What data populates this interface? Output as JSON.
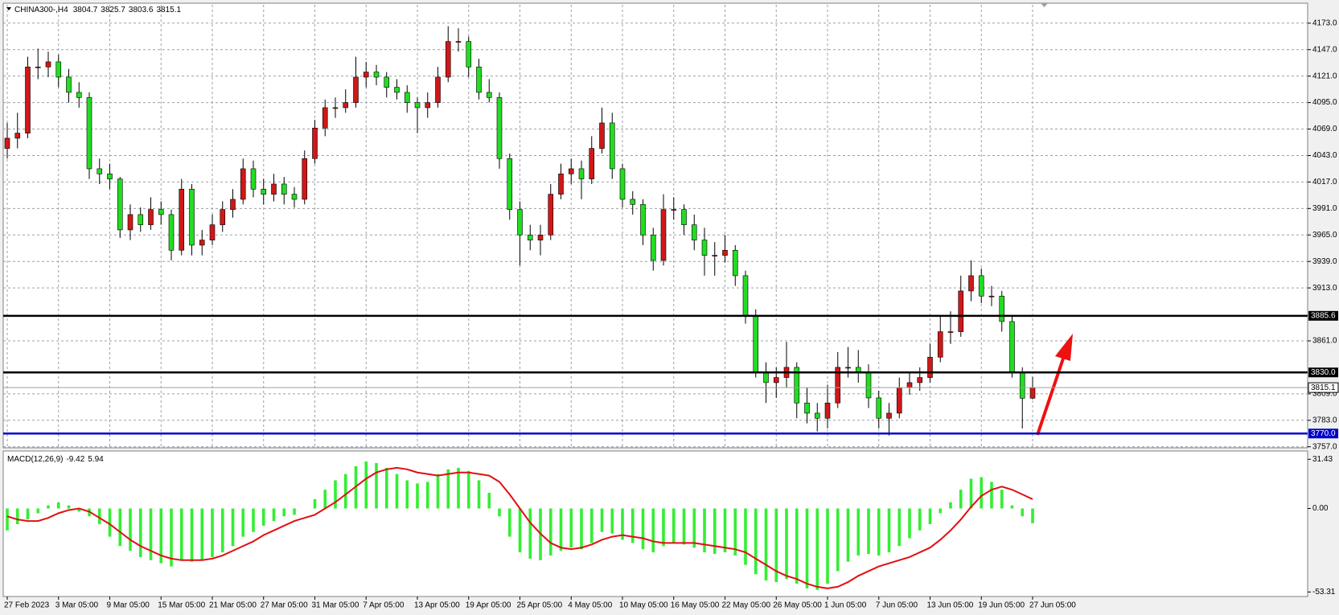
{
  "chart_data": [
    {
      "type": "candlestick",
      "title": "CHINA300-,H4",
      "up_color": "#d01818",
      "down_color": "#22dd22",
      "wick_color": "#000000",
      "grid": true,
      "ylim": [
        3756,
        4191
      ],
      "yticks": [
        {
          "value": 4173,
          "label": "4173.0"
        },
        {
          "value": 4147,
          "label": "4147.0"
        },
        {
          "value": 4121,
          "label": "4121.0"
        },
        {
          "value": 4095,
          "label": "4095.0"
        },
        {
          "value": 4069,
          "label": "4069.0"
        },
        {
          "value": 4043,
          "label": "4043.0"
        },
        {
          "value": 4017,
          "label": "4017.0"
        },
        {
          "value": 3991,
          "label": "3991.0"
        },
        {
          "value": 3965,
          "label": "3965.0"
        },
        {
          "value": 3939,
          "label": "3939.0"
        },
        {
          "value": 3913,
          "label": "3913.0"
        },
        {
          "value": 3861,
          "label": "3861.0"
        },
        {
          "value": 3809,
          "label": "3809.0"
        },
        {
          "value": 3783,
          "label": "3783.0"
        },
        {
          "value": 3757,
          "label": "3757.0"
        }
      ],
      "levels": [
        {
          "price": 3885.6,
          "color": "#000000"
        },
        {
          "price": {
            "value": 3830,
            "label": "3830.0"
          },
          "color": "#000000"
        },
        {
          "price": {
            "value": 3770,
            "label": "3770.0"
          },
          "color": "#0000cc"
        }
      ],
      "bid_line_color": "#a0a0a0",
      "categories": [
        "27 Feb 2023",
        null,
        null,
        null,
        null,
        "3 Mar 05:00",
        null,
        null,
        null,
        null,
        "9 Mar 05:00",
        null,
        null,
        null,
        null,
        "15 Mar 05:00",
        null,
        null,
        null,
        null,
        "21 Mar 05:00",
        null,
        null,
        null,
        null,
        "27 Mar 05:00",
        null,
        null,
        null,
        null,
        "31 Mar 05:00",
        null,
        null,
        null,
        null,
        "7 Apr 05:00",
        null,
        null,
        null,
        null,
        "13 Apr 05:00",
        null,
        null,
        null,
        null,
        "19 Apr 05:00",
        null,
        null,
        null,
        null,
        "25 Apr 05:00",
        null,
        null,
        null,
        null,
        "4 May 05:00",
        null,
        null,
        null,
        null,
        "10 May 05:00",
        null,
        null,
        null,
        null,
        "16 May 05:00",
        null,
        null,
        null,
        null,
        "22 May 05:00",
        null,
        null,
        null,
        null,
        "26 May 05:00",
        null,
        null,
        null,
        null,
        "1 Jun 05:00",
        null,
        null,
        null,
        null,
        "7 Jun 05:00",
        null,
        null,
        null,
        null,
        "13 Jun 05:00",
        null,
        null,
        null,
        null,
        "19 Jun 05:00",
        null,
        null,
        null,
        null,
        "27 Jun 05:00"
      ],
      "ohlc": [
        [
          4050,
          4075,
          4040,
          4060
        ],
        [
          4060,
          4085,
          4050,
          4065
        ],
        [
          4065,
          4140,
          4060,
          4130
        ],
        [
          4130,
          4148,
          4118,
          4130
        ],
        [
          4130,
          4145,
          4120,
          4135
        ],
        [
          4135,
          4142,
          4110,
          4120
        ],
        [
          4120,
          4128,
          4095,
          4105
        ],
        [
          4105,
          4115,
          4090,
          4100
        ],
        [
          4100,
          4105,
          4020,
          4030
        ],
        [
          4030,
          4040,
          4015,
          4025
        ],
        [
          4025,
          4035,
          4010,
          4020
        ],
        [
          4020,
          4022,
          3962,
          3970
        ],
        [
          3970,
          3995,
          3960,
          3985
        ],
        [
          3985,
          3992,
          3968,
          3975
        ],
        [
          3975,
          4002,
          3970,
          3990
        ],
        [
          3990,
          3998,
          3975,
          3985
        ],
        [
          3985,
          3990,
          3940,
          3950
        ],
        [
          3950,
          4020,
          3945,
          4010
        ],
        [
          4010,
          4015,
          3945,
          3955
        ],
        [
          3955,
          3970,
          3945,
          3960
        ],
        [
          3960,
          3985,
          3955,
          3975
        ],
        [
          3975,
          3998,
          3968,
          3990
        ],
        [
          3990,
          4010,
          3982,
          4000
        ],
        [
          4000,
          4040,
          3995,
          4030
        ],
        [
          4030,
          4038,
          4002,
          4010
        ],
        [
          4010,
          4020,
          3995,
          4005
        ],
        [
          4005,
          4025,
          3998,
          4015
        ],
        [
          4015,
          4022,
          3995,
          4005
        ],
        [
          4005,
          4012,
          3992,
          4000
        ],
        [
          4000,
          4048,
          3995,
          4040
        ],
        [
          4040,
          4078,
          4035,
          4070
        ],
        [
          4070,
          4098,
          4062,
          4090
        ],
        [
          4090,
          4100,
          4080,
          4090
        ],
        [
          4090,
          4108,
          4085,
          4095
        ],
        [
          4095,
          4140,
          4090,
          4120
        ],
        [
          4120,
          4135,
          4110,
          4125
        ],
        [
          4125,
          4132,
          4112,
          4120
        ],
        [
          4120,
          4125,
          4100,
          4110
        ],
        [
          4110,
          4118,
          4098,
          4105
        ],
        [
          4105,
          4112,
          4085,
          4095
        ],
        [
          4095,
          4100,
          4065,
          4090
        ],
        [
          4090,
          4105,
          4080,
          4095
        ],
        [
          4095,
          4130,
          4090,
          4120
        ],
        [
          4120,
          4170,
          4115,
          4155
        ],
        [
          4155,
          4168,
          4145,
          4155
        ],
        [
          4155,
          4160,
          4120,
          4130
        ],
        [
          4130,
          4138,
          4098,
          4105
        ],
        [
          4105,
          4118,
          4095,
          4100
        ],
        [
          4100,
          4105,
          4030,
          4040
        ],
        [
          4040,
          4045,
          3980,
          3990
        ],
        [
          3990,
          3998,
          3935,
          3965
        ],
        [
          3965,
          3975,
          3950,
          3960
        ],
        [
          3960,
          3975,
          3945,
          3965
        ],
        [
          3965,
          4015,
          3960,
          4005
        ],
        [
          4005,
          4035,
          4000,
          4025
        ],
        [
          4025,
          4040,
          4015,
          4030
        ],
        [
          4030,
          4038,
          4000,
          4020
        ],
        [
          4020,
          4062,
          4015,
          4050
        ],
        [
          4050,
          4090,
          4045,
          4075
        ],
        [
          4075,
          4085,
          4020,
          4030
        ],
        [
          4030,
          4035,
          3992,
          4000
        ],
        [
          4000,
          4008,
          3985,
          3995
        ],
        [
          3995,
          4000,
          3955,
          3965
        ],
        [
          3965,
          3972,
          3930,
          3940
        ],
        [
          3940,
          4005,
          3935,
          3990
        ],
        [
          3990,
          4002,
          3980,
          3990
        ],
        [
          3990,
          3995,
          3965,
          3975
        ],
        [
          3975,
          3985,
          3950,
          3960
        ],
        [
          3960,
          3972,
          3925,
          3945
        ],
        [
          3945,
          3958,
          3925,
          3945
        ],
        [
          3945,
          3965,
          3938,
          3950
        ],
        [
          3950,
          3955,
          3915,
          3925
        ],
        [
          3925,
          3930,
          3878,
          3885
        ],
        [
          3885,
          3892,
          3825,
          3830
        ],
        [
          3830,
          3840,
          3800,
          3820
        ],
        [
          3820,
          3835,
          3805,
          3825
        ],
        [
          3825,
          3860,
          3815,
          3835
        ],
        [
          3835,
          3840,
          3785,
          3800
        ],
        [
          3800,
          3815,
          3780,
          3790
        ],
        [
          3790,
          3800,
          3772,
          3785
        ],
        [
          3785,
          3818,
          3775,
          3800
        ],
        [
          3800,
          3850,
          3795,
          3835
        ],
        [
          3835,
          3855,
          3825,
          3835
        ],
        [
          3835,
          3852,
          3820,
          3830
        ],
        [
          3830,
          3838,
          3795,
          3805
        ],
        [
          3805,
          3812,
          3775,
          3785
        ],
        [
          3785,
          3800,
          3768,
          3790
        ],
        [
          3790,
          3825,
          3785,
          3815
        ],
        [
          3815,
          3830,
          3808,
          3820
        ],
        [
          3820,
          3835,
          3812,
          3825
        ],
        [
          3825,
          3858,
          3820,
          3845
        ],
        [
          3845,
          3885,
          3840,
          3870
        ],
        [
          3870,
          3890,
          3858,
          3870
        ],
        [
          3870,
          3925,
          3865,
          3910
        ],
        [
          3910,
          3940,
          3900,
          3925
        ],
        [
          3925,
          3932,
          3898,
          3905
        ],
        [
          3905,
          3915,
          3895,
          3905
        ],
        [
          3905,
          3910,
          3870,
          3880
        ],
        [
          3880,
          3885,
          3825,
          3830
        ],
        [
          3830,
          3835,
          3775,
          3804.7
        ],
        [
          3804.7,
          3825.7,
          3803.6,
          3815.1
        ]
      ]
    },
    {
      "type": "macd",
      "title": "MACD(12,26,9)",
      "ylim": [
        -56.2,
        36.2
      ],
      "yticks": [
        31.43,
        {
          "value": 0,
          "label": "0.00"
        },
        -53.31
      ],
      "series": [
        {
          "name": "MACD",
          "kind": "bar",
          "color": "#33ee33",
          "values": [
            -14,
            -10,
            -7,
            -3,
            2,
            4,
            2,
            -2,
            -5,
            -10,
            -18,
            -24,
            -27,
            -31,
            -33,
            -35,
            -37,
            -33,
            -34,
            -33,
            -31,
            -28,
            -24,
            -18,
            -15,
            -11,
            -8,
            -5,
            -4,
            0,
            6,
            12,
            18,
            22,
            27,
            30,
            29,
            26,
            22,
            18,
            16,
            17,
            22,
            25,
            26,
            24,
            18,
            10,
            -5,
            -18,
            -28,
            -32,
            -33,
            -30,
            -27,
            -25,
            -26,
            -22,
            -15,
            -16,
            -20,
            -22,
            -26,
            -28,
            -24,
            -22,
            -23,
            -25,
            -28,
            -29,
            -28,
            -30,
            -36,
            -42,
            -46,
            -47,
            -45,
            -48,
            -51,
            -52,
            -48,
            -40,
            -34,
            -30,
            -29,
            -30,
            -28,
            -24,
            -19,
            -14,
            -10,
            -3,
            4,
            12,
            19,
            20,
            17,
            12,
            2,
            -5,
            -9.42
          ]
        },
        {
          "name": "Signal",
          "kind": "line",
          "color": "#e01010",
          "values": [
            -5,
            -7,
            -8,
            -8,
            -6,
            -3,
            -1,
            0,
            -2,
            -6,
            -10,
            -15,
            -20,
            -24,
            -27,
            -30,
            -32,
            -33,
            -33,
            -33,
            -32,
            -30,
            -27,
            -24,
            -21,
            -17,
            -14,
            -11,
            -8,
            -6,
            -4,
            0,
            4,
            9,
            14,
            19,
            23,
            25,
            26,
            25,
            23,
            22,
            21,
            22,
            23,
            23,
            22,
            21,
            17,
            9,
            0,
            -9,
            -16,
            -22,
            -25,
            -26,
            -25,
            -23,
            -20,
            -18,
            -17,
            -18,
            -19,
            -21,
            -22,
            -22,
            -22,
            -22,
            -23,
            -24,
            -25,
            -26,
            -28,
            -32,
            -36,
            -40,
            -43,
            -45,
            -48,
            -50,
            -51,
            -50,
            -47,
            -43,
            -40,
            -37,
            -35,
            -33,
            -31,
            -28,
            -25,
            -20,
            -14,
            -7,
            1,
            8,
            12,
            14,
            12,
            9,
            5.94
          ]
        }
      ]
    }
  ]
}
